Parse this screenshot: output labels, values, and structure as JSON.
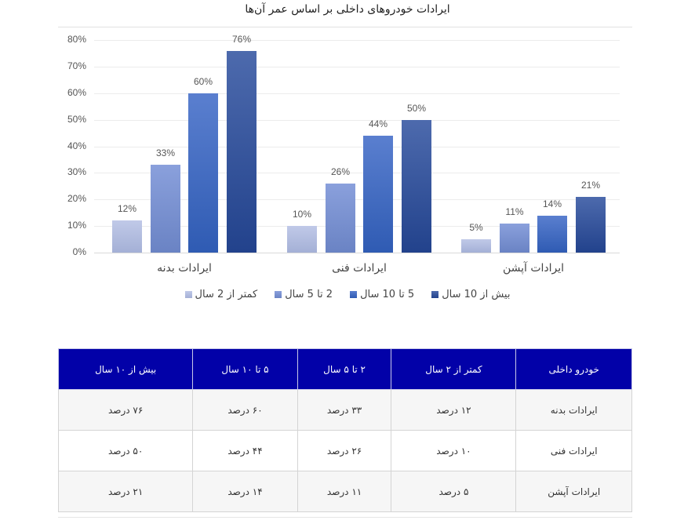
{
  "chart_data": {
    "type": "bar",
    "title": "ایرادات خودروهای داخلی بر اساس عمر آن‌ها",
    "categories": [
      "ایرادات بدنه",
      "ایرادات فنی",
      "ایرادات آپشن"
    ],
    "series": [
      {
        "name": "کمتر از 2 سال",
        "values": [
          12,
          10,
          5
        ],
        "color": "#b3bde0"
      },
      {
        "name": "2 تا 5 سال",
        "values": [
          33,
          26,
          11
        ],
        "color": "#7a91d0"
      },
      {
        "name": "5 تا 10 سال",
        "values": [
          60,
          44,
          14
        ],
        "color": "#3f6bc1"
      },
      {
        "name": "بیش از 10 سال",
        "values": [
          76,
          50,
          21
        ],
        "color": "#34539c"
      }
    ],
    "xlabel": "",
    "ylabel": "",
    "ylim": [
      0,
      80
    ],
    "yticks": [
      "0%",
      "10%",
      "20%",
      "30%",
      "40%",
      "50%",
      "60%",
      "70%",
      "80%"
    ],
    "value_suffix": "%",
    "grid": true,
    "legend_position": "bottom"
  },
  "table": {
    "headers": [
      "خودرو داخلی",
      "کمتر از ۲ سال",
      "۲ تا ۵ سال",
      "۵ تا ۱۰ سال",
      "بیش از ۱۰ سال"
    ],
    "header_color": "#0201a8",
    "rows": [
      [
        "ایرادات بدنه",
        "۱۲ درصد",
        "۳۳ درصد",
        "۶۰ درصد",
        "۷۶ درصد"
      ],
      [
        "ایرادات فنی",
        "۱۰ درصد",
        "۲۶ درصد",
        "۴۴ درصد",
        "۵۰ درصد"
      ],
      [
        "ایرادات آپشن",
        "۵ درصد",
        "۱۱ درصد",
        "۱۴ درصد",
        "۲۱ درصد"
      ]
    ]
  }
}
